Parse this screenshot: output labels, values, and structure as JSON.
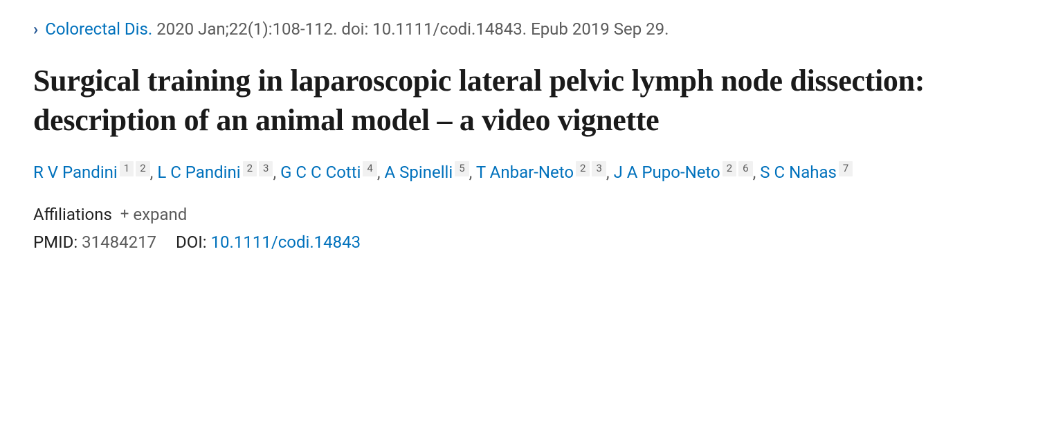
{
  "citation": {
    "journal": "Colorectal Dis.",
    "meta": "2020 Jan;22(1):108-112. doi: 10.1111/codi.14843. Epub 2019 Sep 29."
  },
  "title": "Surgical training in laparoscopic lateral pelvic lymph node dissection: description of an animal model – a video vignette",
  "authors": [
    {
      "name": "R V Pandini",
      "affils": [
        "1",
        "2"
      ]
    },
    {
      "name": "L C Pandini",
      "affils": [
        "2",
        "3"
      ]
    },
    {
      "name": "G C C Cotti",
      "affils": [
        "4"
      ]
    },
    {
      "name": "A Spinelli",
      "affils": [
        "5"
      ]
    },
    {
      "name": "T Anbar-Neto",
      "affils": [
        "2",
        "3"
      ]
    },
    {
      "name": "J A Pupo-Neto",
      "affils": [
        "2",
        "6"
      ]
    },
    {
      "name": "S C Nahas",
      "affils": [
        "7"
      ]
    }
  ],
  "affiliations": {
    "label": "Affiliations",
    "expand": "expand"
  },
  "ids": {
    "pmid_label": "PMID:",
    "pmid_value": "31484217",
    "doi_label": "DOI:",
    "doi_value": "10.1111/codi.14843"
  }
}
